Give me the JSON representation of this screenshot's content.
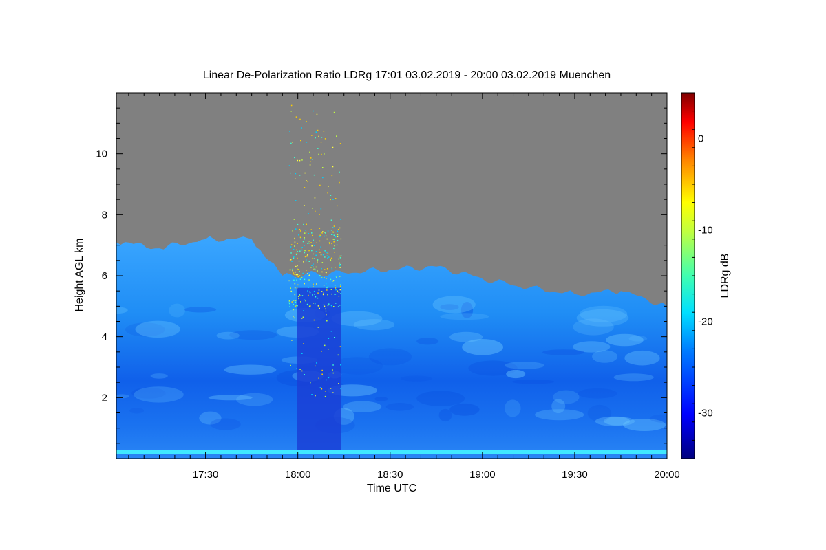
{
  "chart_data": {
    "type": "heatmap",
    "title": "Linear De-Polarization Ratio LDRg   17:01 03.02.2019 - 20:00 03.02.2019 Muenchen",
    "xlabel": "Time UTC",
    "ylabel": "Height AGL km",
    "colorbar_label": "LDRg dB",
    "x_range": [
      "17:01",
      "20:00"
    ],
    "x_ticks": [
      "17:30",
      "18:00",
      "18:30",
      "19:00",
      "19:30",
      "20:00"
    ],
    "y_range": [
      0,
      12
    ],
    "y_ticks": [
      2,
      4,
      6,
      8,
      10
    ],
    "colorbar_range": [
      -35,
      5
    ],
    "colorbar_ticks": [
      0,
      -10,
      -20,
      -30
    ],
    "no_signal_color": "#808080",
    "cloud_top_km": [
      {
        "time": "17:01",
        "top": 7.1
      },
      {
        "time": "17:15",
        "top": 6.9
      },
      {
        "time": "17:30",
        "top": 7.2
      },
      {
        "time": "17:45",
        "top": 7.2
      },
      {
        "time": "17:55",
        "top": 6.0
      },
      {
        "time": "18:15",
        "top": 6.1
      },
      {
        "time": "18:30",
        "top": 6.2
      },
      {
        "time": "18:45",
        "top": 6.3
      },
      {
        "time": "19:00",
        "top": 5.9
      },
      {
        "time": "19:15",
        "top": 5.6
      },
      {
        "time": "19:30",
        "top": 5.4
      },
      {
        "time": "19:45",
        "top": 5.5
      },
      {
        "time": "20:00",
        "top": 5.0
      }
    ],
    "noise_gap": {
      "start": "17:57",
      "end": "18:14"
    }
  }
}
